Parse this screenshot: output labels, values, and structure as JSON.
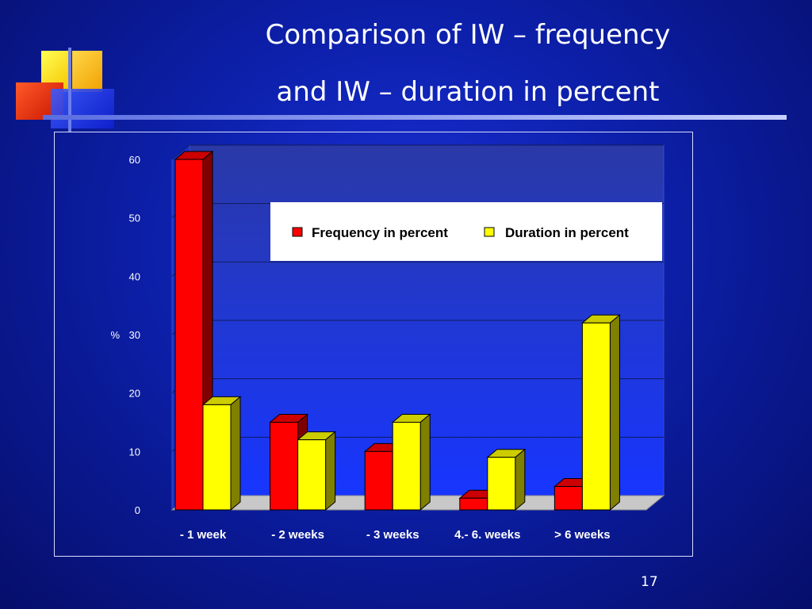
{
  "slide": {
    "title_line1": "Comparison of IW – frequency",
    "title_line2": "and IW – duration in percent",
    "page_number": "17"
  },
  "chart_data": {
    "type": "bar",
    "title": "",
    "xlabel": "",
    "ylabel": "%",
    "ylim": [
      0,
      60
    ],
    "yticks": [
      "0",
      "10",
      "20",
      "30",
      "40",
      "50",
      "60"
    ],
    "categories": [
      "- 1 week",
      "- 2 weeks",
      "- 3 weeks",
      "4.- 6. weeks",
      "> 6 weeks"
    ],
    "series": [
      {
        "name": "Frequency in percent",
        "color": "#ff0000",
        "values": [
          60,
          15,
          10,
          2,
          4
        ]
      },
      {
        "name": "Duration in percent",
        "color": "#ffff00",
        "values": [
          18,
          12,
          15,
          9,
          32
        ]
      }
    ],
    "legend_position": "top-right",
    "style": "3d-bar",
    "grid": true
  }
}
